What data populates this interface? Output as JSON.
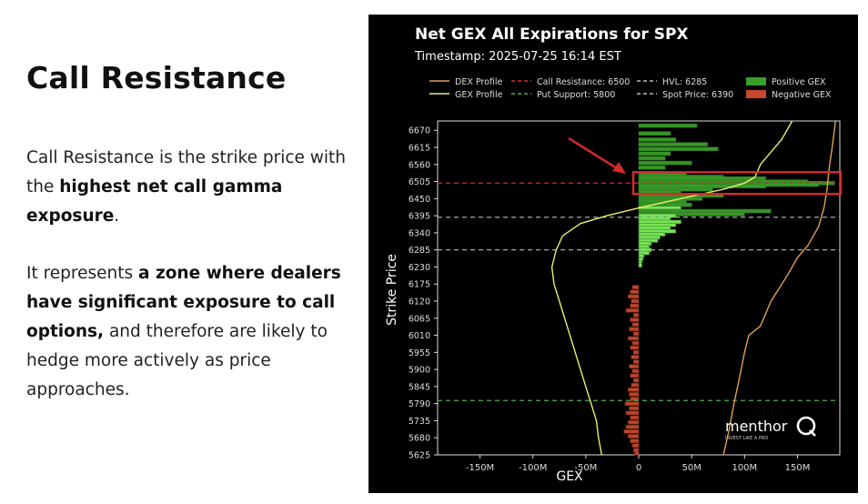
{
  "slide": {
    "title": "Call Resistance",
    "p1": {
      "t1": "Call Resistance is the strike price with the ",
      "b1": "highest net call gamma exposure",
      "t2": "."
    },
    "p2": {
      "t1": "It represents ",
      "b1": "a zone where dealers have significant exposure to call options,",
      "t2": " and therefore are likely to hedge more actively as price approaches."
    }
  },
  "chart_data": {
    "type": "bar",
    "orientation": "horizontal",
    "title": "Net GEX All Expirations for SPX",
    "subtitle": "Timestamp: 2025-07-25 16:14 EST",
    "xlabel": "GEX",
    "ylabel": "Strike Price",
    "xlim": [
      -190,
      190
    ],
    "ylim": [
      5625,
      6700
    ],
    "x_ticks": [
      -150,
      -100,
      -50,
      0,
      50,
      100,
      150
    ],
    "x_tick_labels": [
      "-150M",
      "-100M",
      "-50M",
      "0",
      "50M",
      "100M",
      "150M"
    ],
    "y_ticks": [
      5625,
      5680,
      5735,
      5790,
      5845,
      5900,
      5955,
      6010,
      6065,
      6120,
      6175,
      6230,
      6285,
      6340,
      6395,
      6450,
      6505,
      6560,
      6615,
      6670
    ],
    "legend_position": "top",
    "legend": [
      {
        "label": "DEX Profile",
        "kind": "line",
        "color": "#e0a050"
      },
      {
        "label": "GEX Profile",
        "kind": "line",
        "color": "#e8f06a"
      },
      {
        "label": "Call Resistance: 6500",
        "kind": "dashed",
        "color": "#d42a2a"
      },
      {
        "label": "Put Support: 5800",
        "kind": "dashed",
        "color": "#4caf50"
      },
      {
        "label": "HVL: 6285",
        "kind": "dashed",
        "color": "#bbbbbb"
      },
      {
        "label": "Spot Price: 6390",
        "kind": "dashed",
        "color": "#bbbbbb"
      },
      {
        "label": "Positive GEX",
        "kind": "patch",
        "color": "#3a9e2a"
      },
      {
        "label": "Negative GEX",
        "kind": "patch",
        "color": "#c8482e"
      }
    ],
    "reference_lines": [
      {
        "name": "Call Resistance",
        "value": 6500,
        "color": "#d42a2a"
      },
      {
        "name": "Spot Price",
        "value": 6390,
        "color": "#bbbbbb"
      },
      {
        "name": "HVL",
        "value": 6285,
        "color": "#bbbbbb"
      },
      {
        "name": "Put Support",
        "value": 5800,
        "color": "#4caf50"
      }
    ],
    "series": [
      {
        "name": "Positive GEX",
        "color": "#3a9e2a",
        "points": [
          [
            6685,
            55
          ],
          [
            6660,
            30
          ],
          [
            6640,
            35
          ],
          [
            6625,
            65
          ],
          [
            6610,
            75
          ],
          [
            6595,
            30
          ],
          [
            6580,
            25
          ],
          [
            6565,
            50
          ],
          [
            6550,
            25
          ],
          [
            6530,
            45
          ],
          [
            6520,
            80
          ],
          [
            6515,
            120
          ],
          [
            6505,
            160
          ],
          [
            6500,
            185
          ],
          [
            6495,
            170
          ],
          [
            6490,
            120
          ],
          [
            6480,
            70
          ],
          [
            6470,
            40
          ],
          [
            6460,
            80
          ],
          [
            6450,
            60
          ],
          [
            6440,
            45
          ],
          [
            6430,
            50
          ],
          [
            6420,
            40
          ],
          [
            6410,
            125
          ],
          [
            6400,
            100
          ],
          [
            6395,
            35
          ],
          [
            6385,
            30
          ],
          [
            6375,
            40
          ],
          [
            6365,
            35
          ],
          [
            6355,
            30
          ],
          [
            6345,
            35
          ],
          [
            6335,
            25
          ],
          [
            6325,
            20
          ],
          [
            6315,
            18
          ],
          [
            6305,
            12
          ],
          [
            6295,
            10
          ],
          [
            6285,
            12
          ],
          [
            6275,
            10
          ],
          [
            6265,
            5
          ],
          [
            6255,
            4
          ],
          [
            6245,
            3
          ],
          [
            6235,
            3
          ]
        ]
      },
      {
        "name": "Negative GEX",
        "color": "#c8482e",
        "points": [
          [
            6165,
            -6
          ],
          [
            6150,
            -8
          ],
          [
            6135,
            -10
          ],
          [
            6120,
            -7
          ],
          [
            6105,
            -8
          ],
          [
            6090,
            -12
          ],
          [
            6075,
            -5
          ],
          [
            6060,
            -8
          ],
          [
            6045,
            -6
          ],
          [
            6030,
            -9
          ],
          [
            6015,
            -5
          ],
          [
            6000,
            -10
          ],
          [
            5985,
            -6
          ],
          [
            5970,
            -8
          ],
          [
            5955,
            -5
          ],
          [
            5940,
            -7
          ],
          [
            5925,
            -5
          ],
          [
            5910,
            -9
          ],
          [
            5895,
            -6
          ],
          [
            5880,
            -8
          ],
          [
            5865,
            -5
          ],
          [
            5850,
            -7
          ],
          [
            5835,
            -10
          ],
          [
            5820,
            -9
          ],
          [
            5805,
            -8
          ],
          [
            5790,
            -13
          ],
          [
            5775,
            -9
          ],
          [
            5760,
            -12
          ],
          [
            5745,
            -8
          ],
          [
            5730,
            -10
          ],
          [
            5715,
            -12
          ],
          [
            5700,
            -14
          ],
          [
            5685,
            -10
          ],
          [
            5670,
            -8
          ],
          [
            5655,
            -6
          ],
          [
            5640,
            -5
          ],
          [
            5630,
            -4
          ]
        ]
      },
      {
        "name": "GEX Profile",
        "color": "#e8f06a",
        "points": [
          [
            -35,
            5625
          ],
          [
            -38,
            5680
          ],
          [
            -40,
            5735
          ],
          [
            -45,
            5790
          ],
          [
            -50,
            5845
          ],
          [
            -55,
            5900
          ],
          [
            -60,
            5955
          ],
          [
            -65,
            6010
          ],
          [
            -70,
            6065
          ],
          [
            -75,
            6120
          ],
          [
            -80,
            6175
          ],
          [
            -82,
            6230
          ],
          [
            -78,
            6285
          ],
          [
            -72,
            6330
          ],
          [
            -55,
            6370
          ],
          [
            -30,
            6395
          ],
          [
            0,
            6420
          ],
          [
            40,
            6450
          ],
          [
            80,
            6480
          ],
          [
            100,
            6500
          ],
          [
            110,
            6520
          ],
          [
            115,
            6560
          ],
          [
            125,
            6600
          ],
          [
            135,
            6640
          ],
          [
            145,
            6700
          ]
        ]
      },
      {
        "name": "DEX Profile",
        "color": "#e0a050",
        "points": [
          [
            80,
            5625
          ],
          [
            85,
            5700
          ],
          [
            90,
            5790
          ],
          [
            95,
            5870
          ],
          [
            100,
            5955
          ],
          [
            104,
            6010
          ],
          [
            115,
            6040
          ],
          [
            125,
            6120
          ],
          [
            140,
            6200
          ],
          [
            150,
            6260
          ],
          [
            160,
            6300
          ],
          [
            170,
            6360
          ],
          [
            175,
            6420
          ],
          [
            178,
            6480
          ],
          [
            180,
            6550
          ],
          [
            183,
            6620
          ],
          [
            186,
            6700
          ]
        ]
      }
    ],
    "annotations": [
      {
        "type": "highlight-box",
        "strike_range": [
          6465,
          6535
        ],
        "color": "#d42a2a"
      },
      {
        "type": "arrow",
        "color": "#d42a2a"
      }
    ],
    "watermark": {
      "brand": "menthor",
      "tagline": "INVEST LIKE A PRO"
    }
  }
}
